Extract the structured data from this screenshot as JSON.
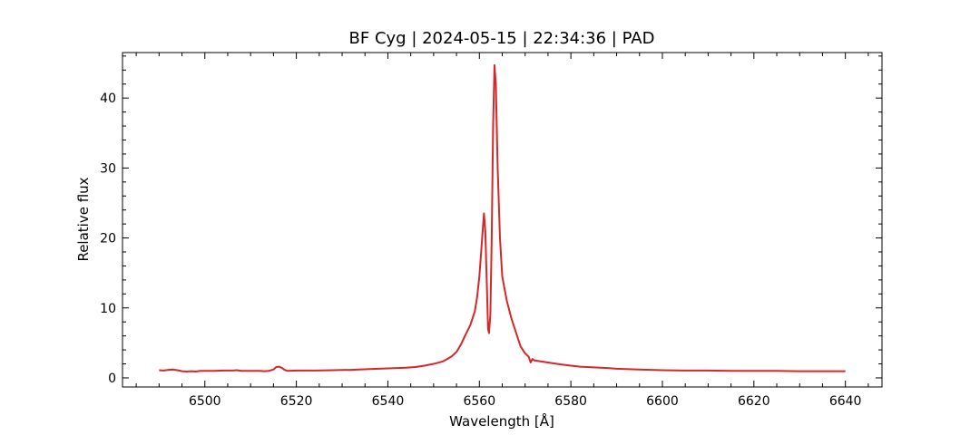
{
  "chart_data": {
    "type": "line",
    "title": "BF Cyg | 2024-05-15 | 22:34:36 | PAD",
    "xlabel": "Wavelength [Å]",
    "ylabel": "Relative flux",
    "xlim": [
      6482,
      6648
    ],
    "ylim": [
      -1.3,
      46.5
    ],
    "x_ticks": [
      6500,
      6520,
      6540,
      6560,
      6580,
      6600,
      6620,
      6640
    ],
    "y_ticks": [
      0,
      10,
      20,
      30,
      40
    ],
    "grid": false,
    "legend": "none",
    "line_color": "#d62728",
    "series": [
      {
        "points": [
          [
            6490,
            1.1
          ],
          [
            6491,
            1.05
          ],
          [
            6492,
            1.15
          ],
          [
            6493,
            1.2
          ],
          [
            6494,
            1.1
          ],
          [
            6495,
            0.95
          ],
          [
            6496,
            0.9
          ],
          [
            6497,
            0.95
          ],
          [
            6498,
            0.9
          ],
          [
            6499,
            1.0
          ],
          [
            6500,
            1.0
          ],
          [
            6502,
            1.0
          ],
          [
            6504,
            1.05
          ],
          [
            6506,
            1.05
          ],
          [
            6507,
            1.1
          ],
          [
            6508,
            1.0
          ],
          [
            6510,
            1.0
          ],
          [
            6512,
            1.0
          ],
          [
            6513,
            0.95
          ],
          [
            6514,
            1.0
          ],
          [
            6515,
            1.2
          ],
          [
            6515.6,
            1.55
          ],
          [
            6516.2,
            1.6
          ],
          [
            6516.8,
            1.45
          ],
          [
            6517.4,
            1.15
          ],
          [
            6518,
            1.0
          ],
          [
            6520,
            1.05
          ],
          [
            6524,
            1.05
          ],
          [
            6528,
            1.1
          ],
          [
            6532,
            1.15
          ],
          [
            6536,
            1.25
          ],
          [
            6540,
            1.35
          ],
          [
            6542,
            1.4
          ],
          [
            6544,
            1.45
          ],
          [
            6546,
            1.55
          ],
          [
            6548,
            1.75
          ],
          [
            6550,
            2.0
          ],
          [
            6552,
            2.35
          ],
          [
            6553,
            2.7
          ],
          [
            6554,
            3.1
          ],
          [
            6555,
            3.7
          ],
          [
            6556,
            4.8
          ],
          [
            6557,
            6.2
          ],
          [
            6558,
            7.5
          ],
          [
            6559,
            9.5
          ],
          [
            6559.5,
            11.5
          ],
          [
            6560,
            14.5
          ],
          [
            6560.5,
            19.0
          ],
          [
            6561,
            23.5
          ],
          [
            6561.3,
            21.0
          ],
          [
            6561.6,
            14.0
          ],
          [
            6561.9,
            7.0
          ],
          [
            6562.1,
            6.4
          ],
          [
            6562.4,
            9.0
          ],
          [
            6562.7,
            20.0
          ],
          [
            6563.0,
            36.0
          ],
          [
            6563.3,
            44.7
          ],
          [
            6563.6,
            42.0
          ],
          [
            6564.0,
            30.0
          ],
          [
            6564.5,
            20.0
          ],
          [
            6565,
            14.5
          ],
          [
            6566,
            11.0
          ],
          [
            6567,
            8.5
          ],
          [
            6568,
            6.5
          ],
          [
            6569,
            4.5
          ],
          [
            6570,
            3.5
          ],
          [
            6570.8,
            3.0
          ],
          [
            6571.2,
            2.2
          ],
          [
            6571.6,
            2.7
          ],
          [
            6572,
            2.5
          ],
          [
            6574,
            2.3
          ],
          [
            6576,
            2.1
          ],
          [
            6578,
            1.9
          ],
          [
            6580,
            1.75
          ],
          [
            6582,
            1.6
          ],
          [
            6585,
            1.5
          ],
          [
            6588,
            1.4
          ],
          [
            6590,
            1.3
          ],
          [
            6595,
            1.2
          ],
          [
            6600,
            1.1
          ],
          [
            6605,
            1.05
          ],
          [
            6610,
            1.05
          ],
          [
            6615,
            1.0
          ],
          [
            6620,
            1.0
          ],
          [
            6625,
            1.0
          ],
          [
            6630,
            0.95
          ],
          [
            6635,
            0.95
          ],
          [
            6640,
            0.95
          ]
        ]
      }
    ]
  }
}
